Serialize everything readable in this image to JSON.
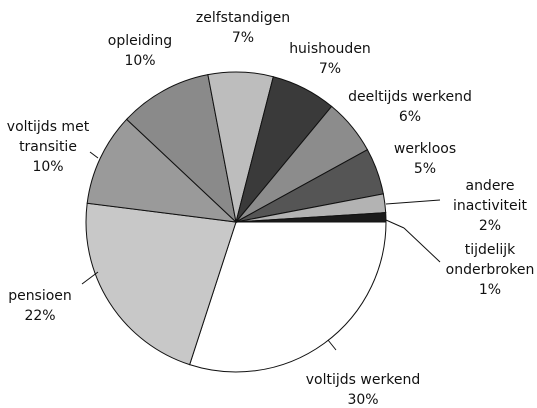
{
  "chart_data": {
    "type": "pie",
    "categories": [
      "tijdelijk onderbroken",
      "andere inactiviteit",
      "werkloos",
      "deeltijds werkend",
      "huishouden",
      "zelfstandigen",
      "opleiding",
      "voltijds met transitie",
      "pensioen",
      "voltijds werkend"
    ],
    "values": [
      1,
      2,
      5,
      6,
      7,
      7,
      10,
      10,
      22,
      30
    ],
    "value_labels": [
      "1%",
      "2%",
      "5%",
      "6%",
      "7%",
      "7%",
      "10%",
      "10%",
      "22%",
      "30%"
    ],
    "colors": [
      "#1a1a1a",
      "#b3b3b3",
      "#555555",
      "#8c8c8c",
      "#3a3a3a",
      "#bdbdbd",
      "#8a8a8a",
      "#9a9a9a",
      "#c8c8c8",
      "#ffffff"
    ]
  }
}
